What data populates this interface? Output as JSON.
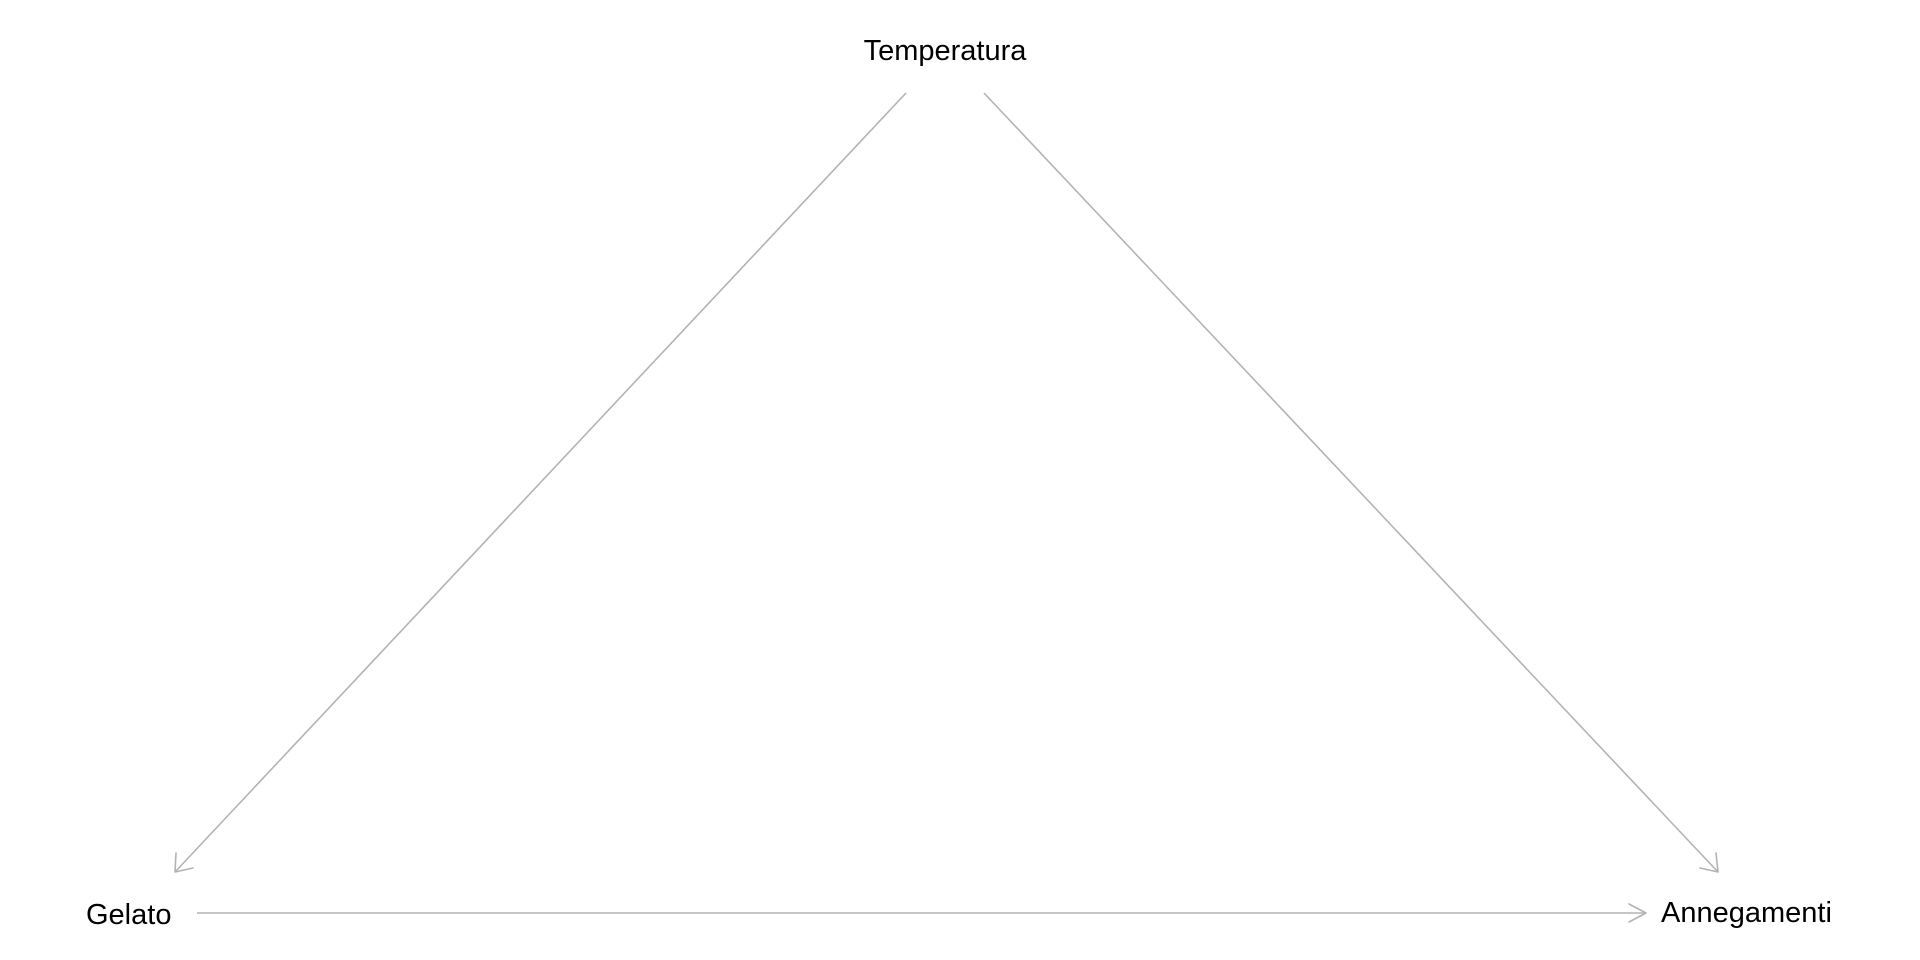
{
  "diagram": {
    "nodes": [
      {
        "id": "temperatura",
        "label": "Temperatura"
      },
      {
        "id": "gelato",
        "label": "Gelato"
      },
      {
        "id": "annegamenti",
        "label": "Annegamenti"
      }
    ],
    "edges": [
      {
        "from": "temperatura",
        "to": "gelato"
      },
      {
        "from": "temperatura",
        "to": "annegamenti"
      },
      {
        "from": "gelato",
        "to": "annegamenti"
      }
    ],
    "colors": {
      "edge": "#b3b3b3",
      "text": "#000000",
      "background": "#ffffff"
    }
  }
}
